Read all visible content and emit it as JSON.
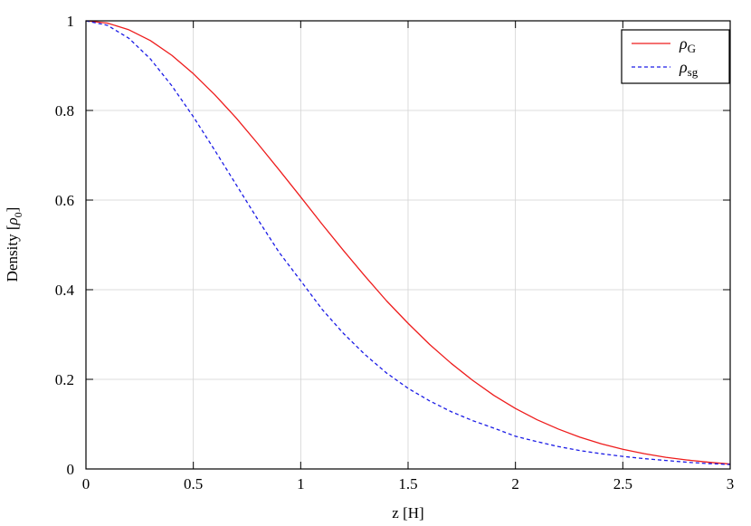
{
  "chart_data": {
    "type": "line",
    "xlabel": "z [H]",
    "ylabel_main": "Density [",
    "ylabel_symbol": "ρ",
    "ylabel_sub": "0",
    "ylabel_end": "]",
    "xlim": [
      0,
      3
    ],
    "ylim": [
      0,
      1
    ],
    "grid": true,
    "legend_position": "top-right",
    "x_ticks": [
      0,
      0.5,
      1,
      1.5,
      2,
      2.5,
      3
    ],
    "x_tick_labels": [
      "0",
      "0.5",
      "1",
      "1.5",
      "2",
      "2.5",
      "3"
    ],
    "y_ticks": [
      0,
      0.2,
      0.4,
      0.6,
      0.8,
      1
    ],
    "y_tick_labels": [
      "0",
      "0.2",
      "0.4",
      "0.6",
      "0.8",
      "1"
    ],
    "x": [
      0,
      0.1,
      0.2,
      0.3,
      0.4,
      0.5,
      0.6,
      0.7,
      0.8,
      0.9,
      1.0,
      1.1,
      1.2,
      1.3,
      1.4,
      1.5,
      1.6,
      1.7,
      1.8,
      1.9,
      2.0,
      2.1,
      2.2,
      2.3,
      2.4,
      2.5,
      2.6,
      2.7,
      2.8,
      2.9,
      3.0
    ],
    "series": [
      {
        "symbol": "ρ",
        "subscript": "G",
        "color": "#ee1c1c",
        "dash": "solid",
        "values": [
          1.0,
          0.995,
          0.98,
          0.956,
          0.923,
          0.882,
          0.835,
          0.783,
          0.726,
          0.667,
          0.607,
          0.546,
          0.487,
          0.43,
          0.375,
          0.325,
          0.278,
          0.236,
          0.198,
          0.164,
          0.135,
          0.11,
          0.089,
          0.071,
          0.056,
          0.044,
          0.034,
          0.026,
          0.02,
          0.015,
          0.011
        ]
      },
      {
        "symbol": "ρ",
        "subscript": "sg",
        "color": "#1c1ce6",
        "dash": "dashed",
        "values": [
          1.0,
          0.99,
          0.961,
          0.915,
          0.855,
          0.786,
          0.711,
          0.634,
          0.557,
          0.483,
          0.42,
          0.356,
          0.302,
          0.255,
          0.214,
          0.18,
          0.152,
          0.128,
          0.108,
          0.091,
          0.073,
          0.061,
          0.05,
          0.041,
          0.034,
          0.028,
          0.023,
          0.019,
          0.015,
          0.012,
          0.01
        ]
      }
    ]
  }
}
